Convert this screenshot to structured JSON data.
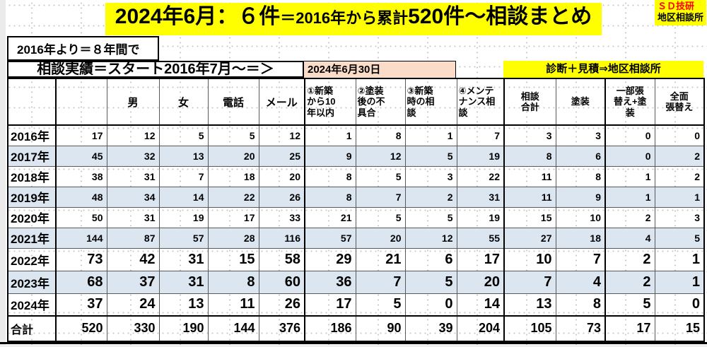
{
  "header": {
    "title_part1": "2024年6月：６件",
    "title_part2": "＝2016年から累計",
    "title_part3": "520件～相談まとめ",
    "badge_line1": "ＳＤ技研",
    "badge_line2": "地区相談所",
    "period_note": "2016年より＝８年間で"
  },
  "band": {
    "history_label": "相談実績＝スタート2016年7月～＝＞",
    "as_of_date": "2024年6月30日",
    "referral_label": "診断＋見積⇒地区相談所"
  },
  "table": {
    "column_headers": [
      "",
      "",
      "男",
      "女",
      "電話",
      "メール",
      "①新築\nから10\n年以内",
      "②塗装\n後の不\n具合",
      "③新築\n時の相\n談",
      "④メンテ\nナンス相\n談",
      "相談\n合計",
      "塗装",
      "一部張\n替え+塗\n装",
      "全面\n張替え"
    ],
    "rows": [
      {
        "label": "2016年",
        "values": [
          17,
          12,
          5,
          5,
          12,
          1,
          8,
          1,
          7,
          3,
          3,
          0,
          0
        ],
        "style": "small",
        "striped": false
      },
      {
        "label": "2017年",
        "values": [
          45,
          32,
          13,
          20,
          25,
          9,
          12,
          5,
          19,
          8,
          6,
          0,
          2
        ],
        "style": "small",
        "striped": true
      },
      {
        "label": "2018年",
        "values": [
          38,
          31,
          7,
          18,
          20,
          8,
          5,
          3,
          22,
          11,
          8,
          1,
          2
        ],
        "style": "small",
        "striped": false
      },
      {
        "label": "2019年",
        "values": [
          48,
          34,
          14,
          22,
          26,
          8,
          7,
          2,
          31,
          11,
          9,
          1,
          1
        ],
        "style": "small",
        "striped": true
      },
      {
        "label": "2020年",
        "values": [
          50,
          31,
          19,
          17,
          33,
          21,
          5,
          5,
          19,
          15,
          10,
          2,
          3
        ],
        "style": "small",
        "striped": false
      },
      {
        "label": "2021年",
        "values": [
          144,
          87,
          57,
          28,
          116,
          57,
          20,
          12,
          55,
          27,
          18,
          4,
          5
        ],
        "style": "small",
        "striped": true
      },
      {
        "label": "2022年",
        "values": [
          73,
          42,
          31,
          15,
          58,
          29,
          21,
          6,
          17,
          10,
          7,
          2,
          1
        ],
        "style": "large",
        "striped": false
      },
      {
        "label": "2023年",
        "values": [
          68,
          37,
          31,
          8,
          60,
          36,
          7,
          5,
          20,
          7,
          4,
          2,
          1
        ],
        "style": "large",
        "striped": true
      },
      {
        "label": "2024年",
        "values": [
          37,
          24,
          13,
          11,
          26,
          17,
          5,
          0,
          14,
          13,
          8,
          5,
          0
        ],
        "style": "large",
        "striped": false
      },
      {
        "label": "合計",
        "values": [
          520,
          330,
          190,
          144,
          376,
          186,
          90,
          39,
          204,
          105,
          73,
          17,
          15
        ],
        "style": "total",
        "striped": false
      }
    ]
  },
  "colors": {
    "highlight_yellow": "#ffff00",
    "stripe_blue": "#dce6f1",
    "date_peach": "#fbdcc8",
    "badge_red": "#ff0000"
  }
}
